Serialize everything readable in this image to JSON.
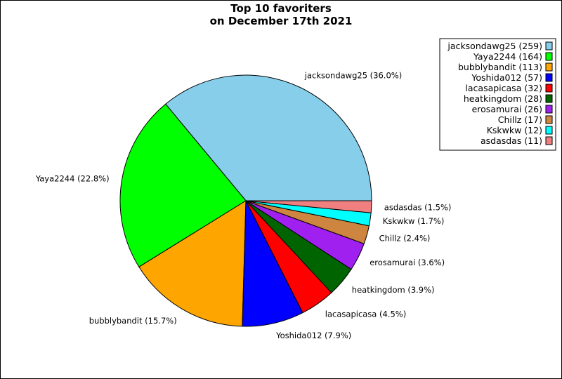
{
  "chart_data": {
    "type": "pie",
    "title_line1": "Top 10 favoriters",
    "title_line2": "on December 17th 2021",
    "slices": [
      {
        "name": "jacksondawg25",
        "value": 259,
        "pct_label": "jacksondawg25 (36.0%)",
        "legend_label": "jacksondawg25 (259)",
        "color": "#87CEEB"
      },
      {
        "name": "Yaya2244",
        "value": 164,
        "pct_label": "Yaya2244 (22.8%)",
        "legend_label": "Yaya2244 (164)",
        "color": "#00FF00"
      },
      {
        "name": "bubblybandit",
        "value": 113,
        "pct_label": "bubblybandit (15.7%)",
        "legend_label": "bubblybandit (113)",
        "color": "#FFA500"
      },
      {
        "name": "Yoshida012",
        "value": 57,
        "pct_label": "Yoshida012 (7.9%)",
        "legend_label": "Yoshida012 (57)",
        "color": "#0000FF"
      },
      {
        "name": "lacasapicasa",
        "value": 32,
        "pct_label": "lacasapicasa (4.5%)",
        "legend_label": "lacasapicasa (32)",
        "color": "#FF0000"
      },
      {
        "name": "heatkingdom",
        "value": 28,
        "pct_label": "heatkingdom (3.9%)",
        "legend_label": "heatkingdom (28)",
        "color": "#006400"
      },
      {
        "name": "erosamurai",
        "value": 26,
        "pct_label": "erosamurai (3.6%)",
        "legend_label": "erosamurai (26)",
        "color": "#A020F0"
      },
      {
        "name": "Chillz",
        "value": 17,
        "pct_label": "Chillz (2.4%)",
        "legend_label": "Chillz (17)",
        "color": "#CD853F"
      },
      {
        "name": "Kskwkw",
        "value": 12,
        "pct_label": "Kskwkw (1.7%)",
        "legend_label": "Kskwkw (12)",
        "color": "#00FFFF"
      },
      {
        "name": "asdasdas",
        "value": 11,
        "pct_label": "asdasdas (1.5%)",
        "legend_label": "asdasdas (11)",
        "color": "#F08080"
      }
    ],
    "start_angle_deg": 0,
    "direction": "counterclockwise",
    "legend_position": "top-right"
  }
}
